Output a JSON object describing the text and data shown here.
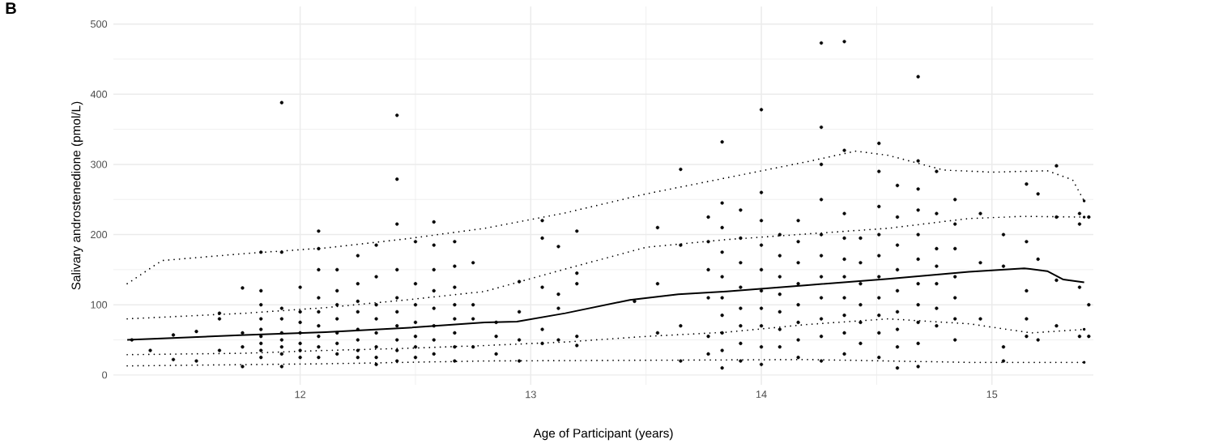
{
  "chart_data": {
    "type": "scatter",
    "title": "B",
    "xlabel": "Age of Participant (years)",
    "ylabel": "Salivary androstenedione (pmol/L)",
    "xlim": [
      11.19,
      15.44
    ],
    "ylim": [
      -14,
      525
    ],
    "xticks": [
      12,
      13,
      14,
      15
    ],
    "yticks": [
      0,
      100,
      200,
      300,
      400,
      500
    ],
    "grid": true,
    "series": [
      {
        "color": "#000000",
        "marker": "circle",
        "x": [
          11.27,
          11.35,
          11.45,
          11.45,
          11.55,
          11.55,
          11.65,
          11.65,
          11.65,
          11.75,
          11.75,
          11.75,
          11.75,
          11.83,
          11.83,
          11.83,
          11.83,
          11.83,
          11.83,
          11.83,
          11.83,
          11.83,
          11.92,
          11.92,
          11.92,
          11.92,
          11.92,
          11.92,
          11.92,
          11.92,
          11.92,
          12.0,
          12.0,
          12.0,
          12.0,
          12.0,
          12.0,
          12.0,
          12.08,
          12.08,
          12.08,
          12.08,
          12.08,
          12.08,
          12.08,
          12.08,
          12.08,
          12.16,
          12.16,
          12.16,
          12.16,
          12.16,
          12.16,
          12.16,
          12.25,
          12.25,
          12.25,
          12.25,
          12.25,
          12.25,
          12.25,
          12.25,
          12.33,
          12.33,
          12.33,
          12.33,
          12.33,
          12.33,
          12.33,
          12.33,
          12.42,
          12.42,
          12.42,
          12.42,
          12.42,
          12.42,
          12.42,
          12.42,
          12.42,
          12.42,
          12.5,
          12.5,
          12.5,
          12.5,
          12.5,
          12.5,
          12.5,
          12.58,
          12.58,
          12.58,
          12.58,
          12.58,
          12.58,
          12.58,
          12.58,
          12.67,
          12.67,
          12.67,
          12.67,
          12.67,
          12.67,
          12.67,
          12.67,
          12.75,
          12.75,
          12.75,
          12.75,
          12.85,
          12.85,
          12.85,
          12.95,
          12.95,
          12.95,
          12.95,
          13.05,
          13.05,
          13.05,
          13.05,
          13.05,
          13.12,
          13.12,
          13.12,
          13.12,
          13.2,
          13.2,
          13.2,
          13.2,
          13.2,
          13.45,
          13.55,
          13.55,
          13.55,
          13.65,
          13.65,
          13.65,
          13.65,
          13.77,
          13.77,
          13.77,
          13.77,
          13.77,
          13.77,
          13.83,
          13.83,
          13.83,
          13.83,
          13.83,
          13.83,
          13.83,
          13.83,
          13.83,
          13.83,
          13.91,
          13.91,
          13.91,
          13.91,
          13.91,
          13.91,
          13.91,
          13.91,
          14.0,
          14.0,
          14.0,
          14.0,
          14.0,
          14.0,
          14.0,
          14.0,
          14.0,
          14.0,
          14.08,
          14.08,
          14.08,
          14.08,
          14.08,
          14.08,
          14.08,
          14.16,
          14.16,
          14.16,
          14.16,
          14.16,
          14.16,
          14.16,
          14.16,
          14.26,
          14.26,
          14.26,
          14.26,
          14.26,
          14.26,
          14.26,
          14.26,
          14.26,
          14.26,
          14.26,
          14.36,
          14.36,
          14.36,
          14.36,
          14.36,
          14.36,
          14.36,
          14.36,
          14.36,
          14.36,
          14.43,
          14.43,
          14.43,
          14.43,
          14.43,
          14.43,
          14.51,
          14.51,
          14.51,
          14.51,
          14.51,
          14.51,
          14.51,
          14.51,
          14.51,
          14.51,
          14.59,
          14.59,
          14.59,
          14.59,
          14.59,
          14.59,
          14.59,
          14.59,
          14.59,
          14.68,
          14.68,
          14.68,
          14.68,
          14.68,
          14.68,
          14.68,
          14.68,
          14.68,
          14.68,
          14.68,
          14.76,
          14.76,
          14.76,
          14.76,
          14.76,
          14.76,
          14.76,
          14.84,
          14.84,
          14.84,
          14.84,
          14.84,
          14.84,
          14.84,
          14.95,
          14.95,
          14.95,
          15.05,
          15.05,
          15.05,
          15.05,
          15.15,
          15.15,
          15.15,
          15.15,
          15.15,
          15.2,
          15.2,
          15.2,
          15.28,
          15.28,
          15.28,
          15.28,
          15.38,
          15.38,
          15.38,
          15.38,
          15.42,
          15.42,
          15.42
        ],
        "values": [
          50,
          35,
          57,
          22,
          62,
          20,
          88,
          80,
          35,
          124,
          60,
          12,
          40,
          175,
          120,
          100,
          80,
          65,
          55,
          45,
          35,
          25,
          388,
          175,
          95,
          80,
          60,
          50,
          40,
          30,
          12,
          125,
          90,
          75,
          60,
          45,
          35,
          25,
          205,
          180,
          150,
          110,
          90,
          70,
          55,
          40,
          25,
          150,
          120,
          100,
          80,
          60,
          45,
          30,
          170,
          130,
          105,
          90,
          65,
          50,
          35,
          25,
          185,
          140,
          100,
          80,
          60,
          40,
          25,
          15,
          370,
          279,
          215,
          150,
          110,
          90,
          70,
          50,
          35,
          20,
          190,
          130,
          100,
          75,
          55,
          40,
          25,
          218,
          185,
          150,
          120,
          95,
          70,
          50,
          30,
          190,
          155,
          125,
          100,
          80,
          60,
          40,
          20,
          160,
          100,
          80,
          40,
          75,
          55,
          30,
          133,
          90,
          50,
          20,
          220,
          195,
          125,
          65,
          45,
          183,
          115,
          95,
          50,
          205,
          145,
          130,
          55,
          42,
          105,
          210,
          130,
          60,
          293,
          185,
          70,
          20,
          225,
          190,
          150,
          110,
          55,
          30,
          332,
          245,
          210,
          175,
          140,
          110,
          85,
          60,
          35,
          10,
          235,
          195,
          160,
          125,
          95,
          70,
          45,
          20,
          378,
          260,
          220,
          185,
          150,
          120,
          95,
          70,
          40,
          15,
          200,
          170,
          140,
          115,
          90,
          65,
          40,
          220,
          190,
          160,
          130,
          100,
          75,
          50,
          25,
          473,
          353,
          300,
          250,
          200,
          170,
          140,
          110,
          80,
          55,
          20,
          475,
          320,
          230,
          195,
          165,
          140,
          110,
          85,
          60,
          30,
          195,
          160,
          130,
          100,
          75,
          45,
          330,
          290,
          240,
          200,
          170,
          140,
          110,
          85,
          60,
          25,
          270,
          225,
          185,
          150,
          120,
          90,
          65,
          40,
          10,
          425,
          305,
          265,
          235,
          200,
          165,
          130,
          100,
          75,
          45,
          12,
          290,
          230,
          180,
          155,
          130,
          95,
          70,
          250,
          215,
          180,
          140,
          110,
          80,
          50,
          230,
          160,
          80,
          200,
          155,
          40,
          20,
          272,
          190,
          120,
          80,
          55,
          258,
          165,
          50,
          298,
          225,
          135,
          70,
          230,
          215,
          125,
          55,
          225,
          100,
          55
        ]
      },
      {
        "type": "line",
        "color": "#000000",
        "line_style": "dotted",
        "x": [
          11.25,
          11.4,
          11.76,
          12.11,
          12.46,
          12.8,
          13.15,
          13.5,
          13.85,
          14.2,
          14.41,
          14.55,
          14.79,
          15.0,
          15.24,
          15.35,
          15.4
        ],
        "values": [
          130,
          163,
          173,
          181,
          194,
          209,
          231,
          258,
          281,
          304,
          319,
          313,
          292,
          289,
          291,
          278,
          248
        ]
      },
      {
        "type": "line",
        "color": "#000000",
        "line_style": "dotted",
        "x": [
          11.25,
          11.76,
          12.11,
          12.46,
          12.8,
          13.15,
          13.5,
          13.85,
          14.2,
          14.55,
          14.9,
          15.14,
          15.4
        ],
        "values": [
          80,
          88,
          96,
          107,
          119,
          151,
          182,
          193,
          201,
          209,
          223,
          226,
          225
        ]
      },
      {
        "type": "line",
        "color": "#000000",
        "line_style": "solid",
        "x": [
          11.25,
          11.76,
          12.11,
          12.46,
          12.8,
          12.94,
          13.15,
          13.43,
          13.64,
          13.85,
          14.2,
          14.55,
          14.9,
          15.14,
          15.24,
          15.31,
          15.4
        ],
        "values": [
          50,
          57,
          61,
          67,
          75,
          76,
          88,
          107,
          115,
          119,
          128,
          137,
          147,
          152,
          148,
          136,
          132
        ]
      },
      {
        "type": "line",
        "color": "#000000",
        "line_style": "dotted",
        "x": [
          11.25,
          11.76,
          12.11,
          12.46,
          12.8,
          13.15,
          13.5,
          13.85,
          14.2,
          14.55,
          14.9,
          15.17,
          15.4
        ],
        "values": [
          29,
          31,
          35,
          38,
          42,
          47,
          55,
          61,
          72,
          80,
          73,
          60,
          65
        ]
      },
      {
        "type": "line",
        "color": "#000000",
        "line_style": "dotted",
        "x": [
          11.25,
          12.11,
          12.8,
          13.5,
          14.2,
          14.9,
          15.4
        ],
        "values": [
          13,
          16,
          20,
          21,
          22,
          18,
          18
        ]
      }
    ]
  }
}
